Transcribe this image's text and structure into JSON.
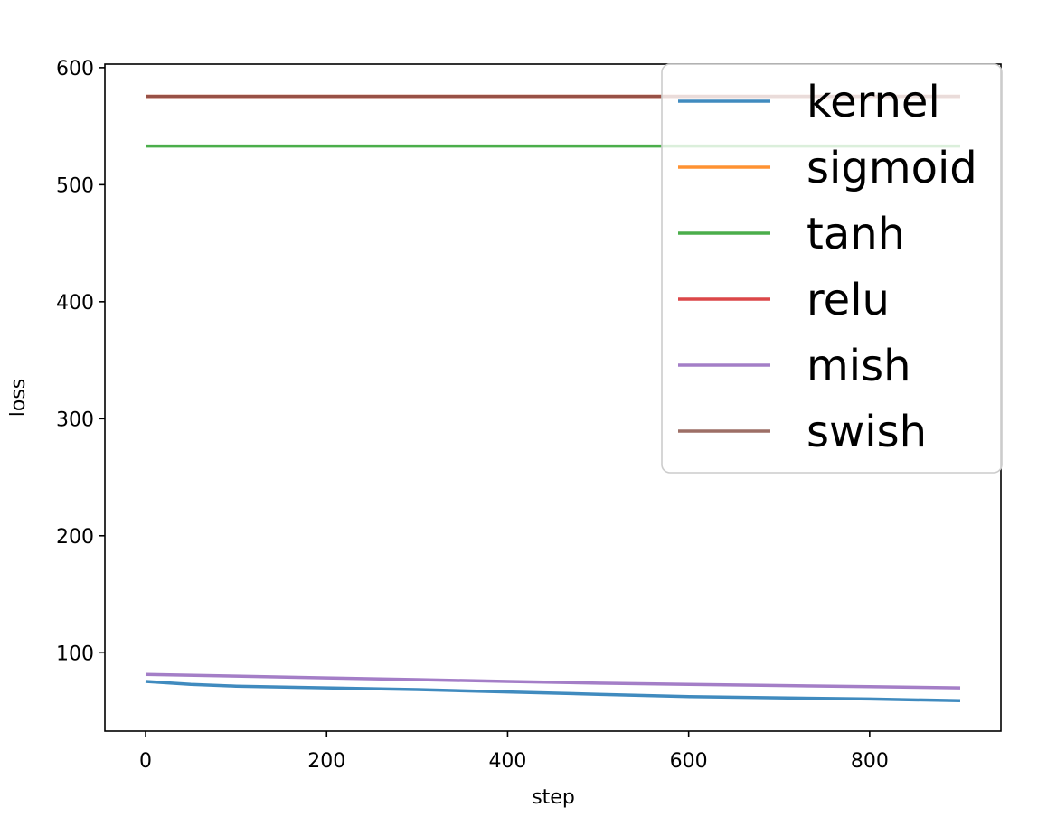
{
  "chart_data": {
    "type": "line",
    "title": "",
    "xlabel": "step",
    "ylabel": "loss",
    "xlim": [
      -45,
      945
    ],
    "ylim": [
      33,
      603
    ],
    "xticks": [
      0,
      200,
      400,
      600,
      800
    ],
    "yticks": [
      100,
      200,
      300,
      400,
      500,
      600
    ],
    "grid": false,
    "legend": {
      "position": "upper right"
    },
    "series": [
      {
        "name": "kernel",
        "color": "#1f77b4",
        "x": [
          0,
          50,
          100,
          200,
          300,
          400,
          500,
          600,
          700,
          800,
          900
        ],
        "y": [
          75.5,
          73,
          71.5,
          70,
          68.5,
          66.5,
          64.5,
          62.5,
          61.5,
          60.5,
          59
        ]
      },
      {
        "name": "sigmoid",
        "color": "#ff7f0e",
        "x": [
          0,
          900
        ],
        "y": [
          575.5,
          575.5
        ]
      },
      {
        "name": "tanh",
        "color": "#2ca02c",
        "x": [
          0,
          900
        ],
        "y": [
          533,
          533
        ]
      },
      {
        "name": "relu",
        "color": "#d62728",
        "x": [
          0,
          900
        ],
        "y": [
          575.5,
          575.5
        ]
      },
      {
        "name": "mish",
        "color": "#9467bd",
        "x": [
          0,
          100,
          200,
          300,
          400,
          500,
          600,
          700,
          800,
          900
        ],
        "y": [
          81.5,
          80,
          78.5,
          77,
          75.5,
          74,
          73,
          72,
          71,
          70
        ]
      },
      {
        "name": "swish",
        "color": "#8c564b",
        "x": [
          0,
          900
        ],
        "y": [
          575.5,
          575.5
        ]
      }
    ]
  }
}
